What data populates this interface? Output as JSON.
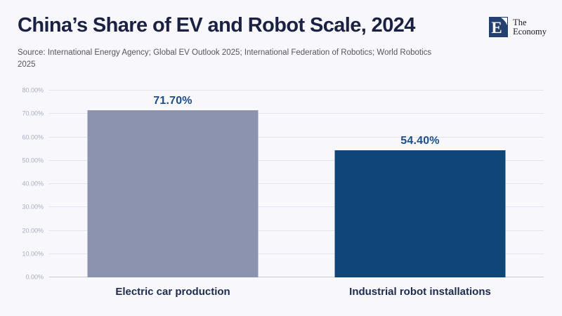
{
  "header": {
    "title": "China’s Share of EV and Robot Scale, 2024",
    "source": "Source: International Energy Agency; Global EV Outlook 2025; International Federation of Robotics; World Robotics 2025",
    "logo": {
      "mark_letter": "E",
      "name_line1": "The",
      "name_line2": "Economy",
      "brand_color": "#24406e"
    }
  },
  "chart_data": {
    "type": "bar",
    "title": "China’s Share of EV and Robot Scale, 2024",
    "categories": [
      "Electric car production",
      "Industrial robot installations"
    ],
    "values": [
      71.7,
      54.4
    ],
    "value_labels": [
      "71.70%",
      "54.40%"
    ],
    "bar_colors": [
      "#8b93ae",
      "#0e4679"
    ],
    "xlabel": "",
    "ylabel": "",
    "ylim": [
      0,
      80
    ],
    "yticks": [
      0,
      10,
      20,
      30,
      40,
      50,
      60,
      70,
      80
    ],
    "ytick_labels": [
      "0.00%",
      "10.00%",
      "20.00%",
      "30.00%",
      "40.00%",
      "50.00%",
      "60.00%",
      "70.00%",
      "80.00%"
    ],
    "grid": true,
    "legend_position": "none",
    "value_label_color": "#1d4e8c",
    "category_label_color": "#1d2b50",
    "background_color": "#f7f7fc"
  }
}
